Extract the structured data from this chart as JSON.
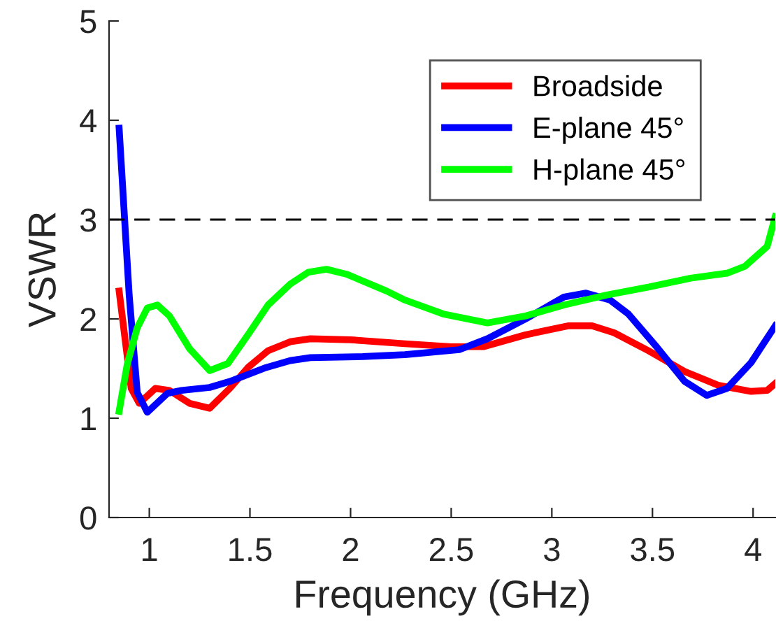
{
  "chart_data": {
    "type": "line",
    "xlabel": "Frequency (GHz)",
    "ylabel": "VSWR",
    "xlim": [
      0.8,
      4.11
    ],
    "ylim": [
      0,
      5
    ],
    "xticks": [
      1,
      1.5,
      2,
      2.5,
      3,
      3.5,
      4
    ],
    "yticks": [
      0,
      1,
      2,
      3,
      4,
      5
    ],
    "grid": false,
    "legend": "top right",
    "line_style": "solid",
    "marker": "none",
    "ref_lines": [
      {
        "axis": "y",
        "value": 3,
        "color": "#000000",
        "line_style": "dashed"
      }
    ],
    "series": [
      {
        "name": "Broadside",
        "color": "#ff0000",
        "x": [
          0.85,
          0.91,
          0.95,
          1.03,
          1.1,
          1.2,
          1.3,
          1.4,
          1.49,
          1.59,
          1.7,
          1.8,
          2.0,
          2.27,
          2.5,
          2.66,
          2.87,
          3.08,
          3.2,
          3.31,
          3.48,
          3.66,
          3.83,
          3.99,
          4.07,
          4.11
        ],
        "values": [
          2.28,
          1.3,
          1.15,
          1.3,
          1.28,
          1.15,
          1.1,
          1.3,
          1.51,
          1.68,
          1.77,
          1.8,
          1.79,
          1.75,
          1.72,
          1.72,
          1.84,
          1.93,
          1.93,
          1.86,
          1.68,
          1.47,
          1.33,
          1.27,
          1.28,
          1.35
        ]
      },
      {
        "name": "E-plane 45°",
        "color": "#0000ff",
        "x": [
          0.85,
          0.9,
          0.94,
          0.99,
          1.09,
          1.16,
          1.3,
          1.4,
          1.58,
          1.7,
          1.8,
          2.06,
          2.27,
          2.54,
          2.68,
          2.87,
          3.06,
          3.17,
          3.29,
          3.38,
          3.52,
          3.66,
          3.77,
          3.87,
          3.99,
          4.11
        ],
        "values": [
          3.92,
          2.24,
          1.26,
          1.06,
          1.25,
          1.28,
          1.31,
          1.37,
          1.51,
          1.58,
          1.61,
          1.62,
          1.64,
          1.69,
          1.8,
          2.0,
          2.22,
          2.26,
          2.19,
          2.05,
          1.72,
          1.37,
          1.23,
          1.3,
          1.56,
          1.93
        ]
      },
      {
        "name": "H-plane 45°",
        "color": "#00ff00",
        "x": [
          0.85,
          0.89,
          0.94,
          0.99,
          1.04,
          1.1,
          1.2,
          1.3,
          1.39,
          1.49,
          1.59,
          1.7,
          1.79,
          1.88,
          1.98,
          2.18,
          2.27,
          2.46,
          2.68,
          2.87,
          3.06,
          3.27,
          3.48,
          3.69,
          3.87,
          3.96,
          4.07,
          4.11
        ],
        "values": [
          1.07,
          1.54,
          1.91,
          2.11,
          2.14,
          2.03,
          1.7,
          1.48,
          1.55,
          1.84,
          2.14,
          2.35,
          2.47,
          2.5,
          2.45,
          2.28,
          2.19,
          2.05,
          1.96,
          2.03,
          2.14,
          2.24,
          2.32,
          2.41,
          2.46,
          2.53,
          2.73,
          3.03
        ]
      }
    ]
  }
}
